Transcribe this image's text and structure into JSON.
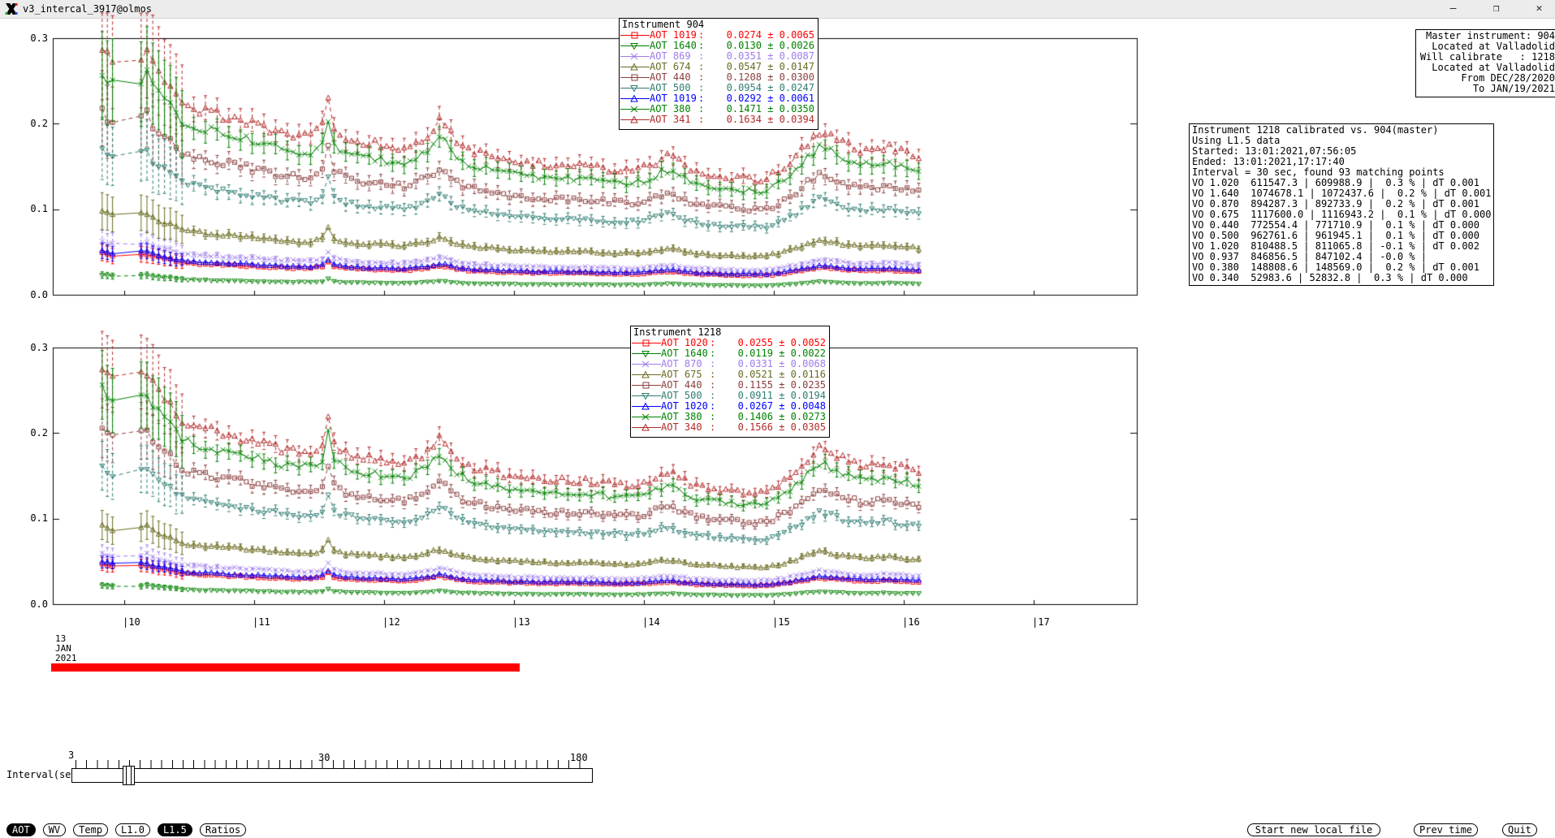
{
  "window": {
    "title": "v3_intercal_3917@olmos",
    "icon": "x11-logo",
    "minimize_glyph": "—",
    "maximize_glyph": "❐",
    "close_glyph": "✕"
  },
  "master_box": {
    "lines": [
      "Master instrument: 904",
      "Located at Valladolid",
      "Will calibrate   : 1218",
      "Located at Valladolid",
      "From DEC/28/2020",
      "To JAN/19/2021"
    ]
  },
  "calibration_box": {
    "lines": [
      "Instrument 1218 calibrated vs. 904(master)",
      "Using L1.5 data",
      "Started: 13:01:2021,07:56:05",
      "Ended: 13:01:2021,17:17:40",
      "Interval = 30 sec, found 93 matching points",
      "VO 1.020  611547.3 | 609988.9 |  0.3 % | dT 0.001",
      "VO 1.640  1074678.1 | 1072437.6 |  0.2 % | dT 0.001",
      "VO 0.870  894287.3 | 892733.9 |  0.2 % | dT 0.001",
      "VO 0.675  1117600.0 | 1116943.2 |  0.1 % | dT 0.000",
      "VO 0.440  772554.4 | 771710.9 |  0.1 % | dT 0.000",
      "VO 0.500  962761.6 | 961945.1 |  0.1 % | dT 0.000",
      "VO 1.020  810488.5 | 811065.8 | -0.1 % | dT 0.002",
      "VO 0.937  846856.5 | 847102.4 | -0.0 % |",
      "VO 0.380  148808.6 | 148569.0 |  0.2 % | dT 0.001",
      "VO 0.340  52983.6 | 52832.8 |  0.3 % | dT 0.000"
    ]
  },
  "axes": {
    "yticks": [
      "0.3",
      "0.2",
      "0.1",
      "0.0"
    ],
    "hour_labels": [
      "|10",
      "|11",
      "|12",
      "|13",
      "|14",
      "|15",
      "|16",
      "|17"
    ]
  },
  "timeline": {
    "date_lines": [
      "13",
      "JAN",
      "2021"
    ],
    "bar_color": "#ff0000"
  },
  "interval_slider": {
    "label": "Interval(sec)",
    "min_label": "3",
    "mid_label": "30",
    "max_label": "180",
    "value_sec": 30
  },
  "footer": {
    "mode_buttons": [
      {
        "label": "AOT",
        "active": true
      },
      {
        "label": "WV",
        "active": false
      },
      {
        "label": "Temp",
        "active": false
      },
      {
        "label": "L1.0",
        "active": false
      },
      {
        "label": "L1.5",
        "active": true
      },
      {
        "label": "Ratios",
        "active": false
      }
    ],
    "action_buttons": {
      "new_file": "Start new local file",
      "prev_time": "Prev time",
      "quit": "Quit"
    }
  },
  "chart_data": {
    "type": "line",
    "x_unit": "hour of day",
    "time_range": [
      9.83,
      16.12
    ],
    "ylim": [
      0.0,
      0.3
    ],
    "grid": false,
    "legend_position": "top-center-inside",
    "base_shape": [
      [
        9.83,
        0.262
      ],
      [
        9.87,
        0.252
      ],
      [
        9.91,
        0.246
      ],
      [
        10.13,
        0.252
      ],
      [
        10.17,
        0.258
      ],
      [
        10.22,
        0.242
      ],
      [
        10.3,
        0.228
      ],
      [
        10.38,
        0.215
      ],
      [
        10.45,
        0.2
      ],
      [
        10.55,
        0.196
      ],
      [
        10.7,
        0.19
      ],
      [
        10.85,
        0.185
      ],
      [
        11.0,
        0.179
      ],
      [
        11.15,
        0.173
      ],
      [
        11.3,
        0.168
      ],
      [
        11.45,
        0.167
      ],
      [
        11.53,
        0.178
      ],
      [
        11.57,
        0.208
      ],
      [
        11.62,
        0.176
      ],
      [
        11.7,
        0.166
      ],
      [
        11.85,
        0.161
      ],
      [
        12.0,
        0.157
      ],
      [
        12.15,
        0.154
      ],
      [
        12.28,
        0.162
      ],
      [
        12.36,
        0.171
      ],
      [
        12.44,
        0.184
      ],
      [
        12.5,
        0.172
      ],
      [
        12.58,
        0.158
      ],
      [
        12.7,
        0.15
      ],
      [
        12.85,
        0.145
      ],
      [
        13.0,
        0.141
      ],
      [
        13.15,
        0.138
      ],
      [
        13.3,
        0.136
      ],
      [
        13.45,
        0.136
      ],
      [
        13.6,
        0.135
      ],
      [
        13.75,
        0.132
      ],
      [
        13.9,
        0.131
      ],
      [
        14.02,
        0.134
      ],
      [
        14.12,
        0.142
      ],
      [
        14.2,
        0.147
      ],
      [
        14.28,
        0.138
      ],
      [
        14.4,
        0.13
      ],
      [
        14.55,
        0.126
      ],
      [
        14.7,
        0.123
      ],
      [
        14.85,
        0.121
      ],
      [
        14.95,
        0.123
      ],
      [
        15.05,
        0.131
      ],
      [
        15.15,
        0.143
      ],
      [
        15.25,
        0.158
      ],
      [
        15.35,
        0.172
      ],
      [
        15.42,
        0.169
      ],
      [
        15.5,
        0.162
      ],
      [
        15.6,
        0.155
      ],
      [
        15.68,
        0.151
      ],
      [
        15.78,
        0.153
      ],
      [
        15.88,
        0.156
      ],
      [
        15.96,
        0.151
      ],
      [
        16.05,
        0.149
      ],
      [
        16.12,
        0.146
      ]
    ],
    "charts": [
      {
        "title": "Instrument 904",
        "scale": 1.0,
        "series": [
          {
            "label": "AOT 1019",
            "value": "0.0274",
            "err": "0.0065",
            "color": "#ff0000",
            "marker": "square",
            "dash": false,
            "ratio": 0.1863
          },
          {
            "label": "AOT 1640",
            "value": "0.0130",
            "err": "0.0026",
            "color": "#008000",
            "marker": "tri-down",
            "dash": true,
            "ratio": 0.0884
          },
          {
            "label": "AOT 869",
            "value": "0.0351",
            "err": "0.0087",
            "color": "#9e7bea",
            "marker": "x",
            "dash": true,
            "ratio": 0.2387
          },
          {
            "label": "AOT 674",
            "value": "0.0547",
            "err": "0.0147",
            "color": "#6b6b22",
            "marker": "tri-up",
            "dash": false,
            "ratio": 0.372
          },
          {
            "label": "AOT 440",
            "value": "0.1208",
            "err": "0.0300",
            "color": "#8b3e3e",
            "marker": "square",
            "dash": true,
            "ratio": 0.821
          },
          {
            "label": "AOT 500",
            "value": "0.0954",
            "err": "0.0247",
            "color": "#2e7d72",
            "marker": "tri-down",
            "dash": true,
            "ratio": 0.649
          },
          {
            "label": "AOT 1019",
            "value": "0.0292",
            "err": "0.0061",
            "color": "#0000ff",
            "marker": "tri-up",
            "dash": false,
            "ratio": 0.1985
          },
          {
            "label": "AOT 380",
            "value": "0.1471",
            "err": "0.0350",
            "color": "#008000",
            "marker": "x",
            "dash": false,
            "ratio": 1.0
          },
          {
            "label": "AOT 341",
            "value": "0.1634",
            "err": "0.0394",
            "color": "#b22a2a",
            "marker": "tri-up",
            "dash": true,
            "ratio": 1.111
          }
        ]
      },
      {
        "title": "Instrument 1218",
        "scale": 0.956,
        "series": [
          {
            "label": "AOT 1020",
            "value": "0.0255",
            "err": "0.0052",
            "color": "#ff0000",
            "marker": "square",
            "dash": false,
            "ratio": 0.1863
          },
          {
            "label": "AOT 1640",
            "value": "0.0119",
            "err": "0.0022",
            "color": "#008000",
            "marker": "tri-down",
            "dash": true,
            "ratio": 0.0884
          },
          {
            "label": "AOT 870",
            "value": "0.0331",
            "err": "0.0068",
            "color": "#9e7bea",
            "marker": "x",
            "dash": true,
            "ratio": 0.2387
          },
          {
            "label": "AOT 675",
            "value": "0.0521",
            "err": "0.0116",
            "color": "#6b6b22",
            "marker": "tri-up",
            "dash": false,
            "ratio": 0.372
          },
          {
            "label": "AOT 440",
            "value": "0.1155",
            "err": "0.0235",
            "color": "#8b3e3e",
            "marker": "square",
            "dash": true,
            "ratio": 0.821
          },
          {
            "label": "AOT 500",
            "value": "0.0911",
            "err": "0.0194",
            "color": "#2e7d72",
            "marker": "tri-down",
            "dash": true,
            "ratio": 0.649
          },
          {
            "label": "AOT 1020",
            "value": "0.0267",
            "err": "0.0048",
            "color": "#0000ff",
            "marker": "tri-up",
            "dash": false,
            "ratio": 0.1985
          },
          {
            "label": "AOT 380",
            "value": "0.1406",
            "err": "0.0273",
            "color": "#008000",
            "marker": "x",
            "dash": false,
            "ratio": 1.0
          },
          {
            "label": "AOT 340",
            "value": "0.1566",
            "err": "0.0305",
            "color": "#b22a2a",
            "marker": "tri-up",
            "dash": true,
            "ratio": 1.111
          }
        ]
      }
    ]
  }
}
